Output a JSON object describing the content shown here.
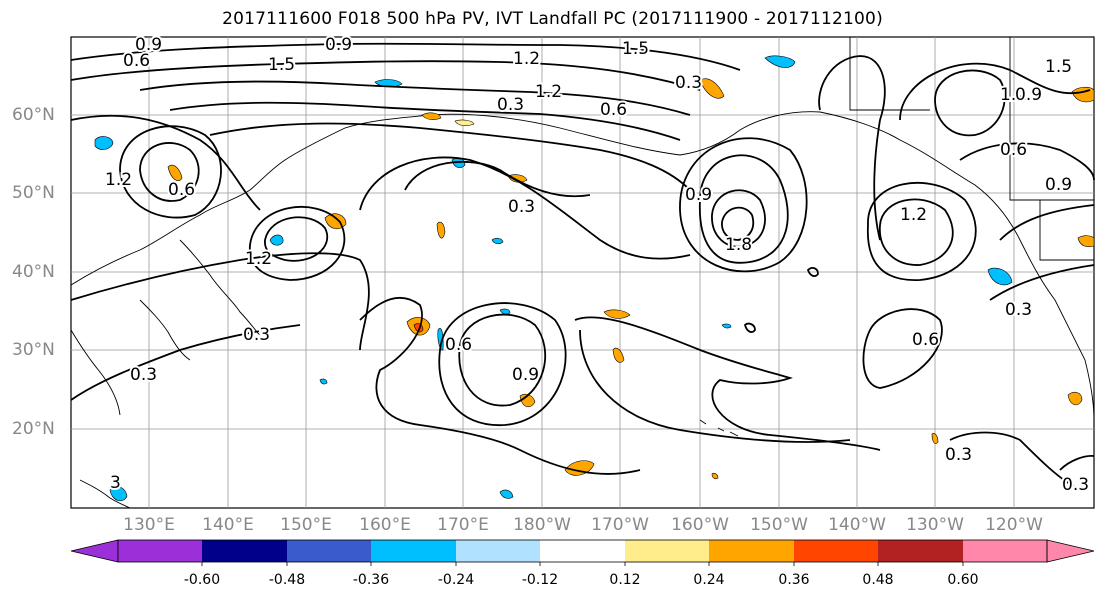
{
  "title": "2017111600 F018 500 hPa PV, IVT Landfall PC (2017111900 - 2017112100)",
  "lat_labels": [
    "60°N",
    "50°N",
    "40°N",
    "30°N",
    "20°N"
  ],
  "lon_labels": [
    "130°E",
    "140°E",
    "150°E",
    "160°E",
    "170°E",
    "180°W",
    "170°W",
    "160°W",
    "150°W",
    "140°W",
    "130°W",
    "120°W"
  ],
  "contour_labels": [
    "0.9",
    "0.9",
    "1.5",
    "1.2",
    "1.2",
    "0.6",
    "0.3",
    "0.6",
    "1.5",
    "0.3",
    "1.2",
    "0.6",
    "0.3",
    "0.9",
    "1.5",
    "1.2",
    "1.8",
    "1.2",
    "0.9",
    "0.6",
    "0.9",
    "1.2",
    "0.3",
    "0.3",
    "0.6",
    "0.3",
    "0.6",
    "0.9",
    "0.3",
    "0.3",
    "3"
  ],
  "colorbar": {
    "tick_labels": [
      "-0.60",
      "-0.48",
      "-0.36",
      "-0.24",
      "-0.12",
      "0.12",
      "0.24",
      "0.36",
      "0.48",
      "0.60"
    ],
    "colors": [
      "#9b30d9",
      "#00008b",
      "#3a5bcc",
      "#00bfff",
      "#b0e2ff",
      "#ffffff",
      "#ffec8b",
      "#ffa500",
      "#ff4500",
      "#b22222",
      "#ff88aa"
    ]
  }
}
